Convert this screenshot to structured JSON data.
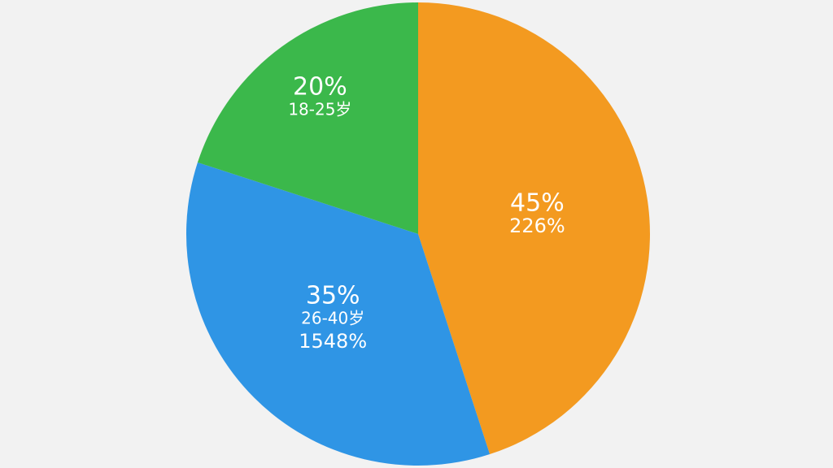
{
  "chart_data": {
    "type": "pie",
    "categories": [
      null,
      "26-40岁",
      "18-25岁"
    ],
    "values": [
      45,
      35,
      20
    ],
    "value_labels": [
      "45%",
      "35%",
      "20%"
    ],
    "secondary_labels": [
      "226%",
      "1548%",
      null
    ],
    "colors": [
      "#f39a20",
      "#2f95e5",
      "#3bb84b"
    ]
  }
}
